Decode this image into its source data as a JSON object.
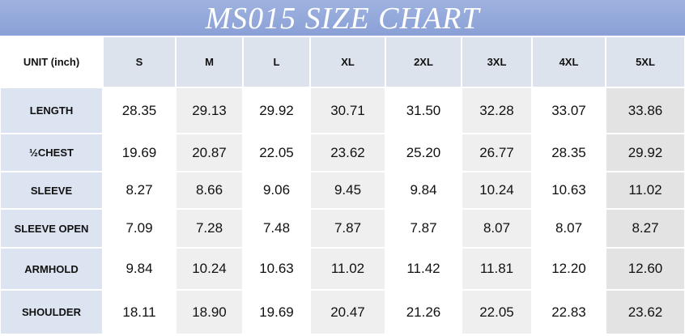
{
  "title": "MS015 SIZE CHART",
  "table": {
    "header": [
      "UNIT (inch)",
      "S",
      "M",
      "L",
      "XL",
      "2XL",
      "3XL",
      "4XL",
      "5XL"
    ],
    "rows": [
      [
        "LENGTH",
        "28.35",
        "29.13",
        "29.92",
        "30.71",
        "31.50",
        "32.28",
        "33.07",
        "33.86"
      ],
      [
        "½CHEST",
        "19.69",
        "20.87",
        "22.05",
        "23.62",
        "25.20",
        "26.77",
        "28.35",
        "29.92"
      ],
      [
        "SLEEVE",
        "8.27",
        "8.66",
        "9.06",
        "9.45",
        "9.84",
        "10.24",
        "10.63",
        "11.02"
      ],
      [
        "SLEEVE OPEN",
        "7.09",
        "7.28",
        "7.48",
        "7.87",
        "7.87",
        "8.07",
        "8.07",
        "8.27"
      ],
      [
        "ARMHOLD",
        "9.84",
        "10.24",
        "10.63",
        "11.02",
        "11.42",
        "11.81",
        "12.20",
        "12.60"
      ],
      [
        "SHOULDER",
        "18.11",
        "18.90",
        "19.69",
        "20.47",
        "21.26",
        "22.05",
        "22.83",
        "23.62"
      ]
    ]
  }
}
